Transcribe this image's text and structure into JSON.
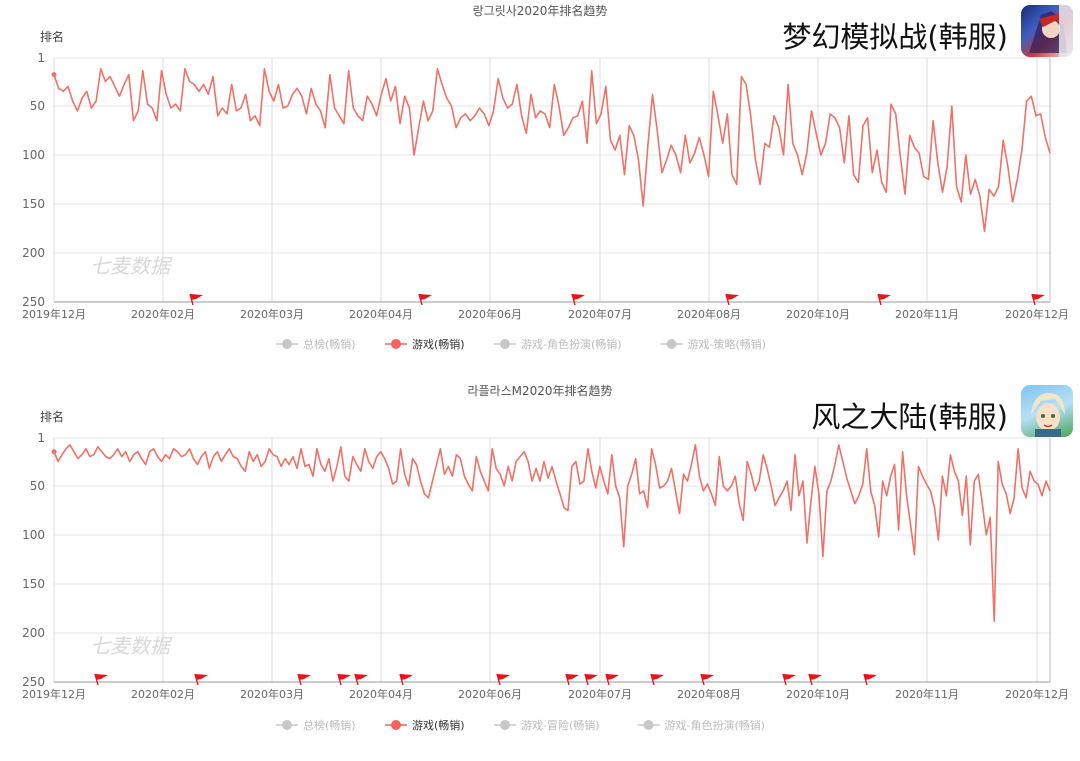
{
  "colors": {
    "line": "#f07167",
    "legend_active": "#f4645b",
    "legend_inactive": "#c8c8c8",
    "grid": "#e6e6e6",
    "axis_text": "#666666",
    "flag": "#e8141b"
  },
  "chart_data": [
    {
      "type": "line",
      "title": "랑그릿사2020年排名趋势",
      "app_label": "梦幻模拟战(韩服)",
      "app_icon": "app-icon-langrisser",
      "ylabel": "排名",
      "y_inverted": true,
      "ylim": [
        1,
        250
      ],
      "yticks": [
        "1",
        "50",
        "100",
        "150",
        "200",
        "250"
      ],
      "x_ticks": [
        "2019年12月",
        "2020年02月",
        "2020年03月",
        "2020年04月",
        "2020年06月",
        "2020年07月",
        "2020年08月",
        "2020年10月",
        "2020年11月",
        "2020年12月"
      ],
      "watermark": "七麦数据",
      "legend": [
        "总榜(畅销)",
        "游戏(畅销)",
        "游戏-角色扮演(畅销)",
        "游戏-策略(畅销)"
      ],
      "legend_active": 1,
      "series": [
        {
          "name": "游戏(畅销)",
          "values": [
            18,
            32,
            35,
            30,
            45,
            55,
            42,
            35,
            52,
            45,
            12,
            25,
            20,
            30,
            40,
            28,
            18,
            65,
            55,
            14,
            48,
            52,
            65,
            14,
            38,
            52,
            48,
            55,
            12,
            25,
            28,
            35,
            28,
            38,
            20,
            60,
            52,
            58,
            28,
            55,
            52,
            38,
            65,
            60,
            70,
            12,
            35,
            45,
            28,
            52,
            50,
            38,
            32,
            40,
            58,
            32,
            48,
            55,
            72,
            18,
            52,
            60,
            68,
            14,
            52,
            60,
            65,
            40,
            48,
            60,
            38,
            22,
            45,
            30,
            68,
            40,
            52,
            100,
            72,
            45,
            65,
            55,
            12,
            28,
            42,
            50,
            72,
            62,
            58,
            65,
            60,
            52,
            58,
            70,
            55,
            22,
            42,
            52,
            48,
            28,
            60,
            78,
            38,
            62,
            55,
            58,
            72,
            28,
            50,
            80,
            72,
            62,
            60,
            45,
            88,
            14,
            68,
            58,
            30,
            85,
            95,
            80,
            120,
            70,
            80,
            105,
            152,
            90,
            38,
            75,
            118,
            105,
            90,
            100,
            118,
            80,
            108,
            98,
            82,
            100,
            122,
            35,
            60,
            88,
            58,
            120,
            130,
            20,
            28,
            60,
            105,
            130,
            88,
            92,
            60,
            72,
            100,
            28,
            88,
            100,
            120,
            98,
            55,
            78,
            100,
            88,
            58,
            62,
            72,
            108,
            60,
            120,
            128,
            70,
            62,
            118,
            95,
            128,
            138,
            48,
            58,
            102,
            140,
            80,
            92,
            98,
            122,
            125,
            65,
            108,
            138,
            112,
            50,
            132,
            148,
            100,
            140,
            125,
            142,
            178,
            135,
            142,
            132,
            85,
            112,
            148,
            125,
            95,
            45,
            40,
            60,
            58,
            82,
            98
          ]
        }
      ],
      "flags": [
        "2020年02月",
        "2020年04月",
        "2020年07月",
        "2020年08月",
        "2020年10月",
        "2020年12月"
      ]
    },
    {
      "type": "line",
      "title": "라플라스M2020年排名趋势",
      "app_label": "风之大陆(韩服)",
      "app_icon": "app-icon-laplace",
      "ylabel": "排名",
      "y_inverted": true,
      "ylim": [
        1,
        250
      ],
      "yticks": [
        "1",
        "50",
        "100",
        "150",
        "200",
        "250"
      ],
      "x_ticks": [
        "2019年12月",
        "2020年02月",
        "2020年03月",
        "2020年04月",
        "2020年06月",
        "2020年07月",
        "2020年08月",
        "2020年10月",
        "2020年11月",
        "2020年12月"
      ],
      "watermark": "七麦数据",
      "legend": [
        "总榜(畅销)",
        "游戏(畅销)",
        "游戏-冒险(畅销)",
        "游戏-角色扮演(畅销)"
      ],
      "legend_active": 1,
      "series": [
        {
          "name": "游戏(畅销)",
          "values": [
            15,
            25,
            18,
            12,
            8,
            15,
            22,
            18,
            12,
            20,
            18,
            10,
            15,
            20,
            22,
            18,
            12,
            20,
            15,
            25,
            18,
            15,
            22,
            28,
            15,
            12,
            20,
            25,
            18,
            22,
            12,
            15,
            20,
            18,
            12,
            22,
            28,
            20,
            15,
            32,
            20,
            15,
            25,
            18,
            12,
            20,
            22,
            30,
            35,
            15,
            25,
            18,
            30,
            25,
            12,
            18,
            20,
            30,
            22,
            28,
            20,
            32,
            12,
            30,
            28,
            40,
            12,
            28,
            35,
            22,
            45,
            30,
            10,
            40,
            45,
            20,
            28,
            35,
            12,
            25,
            32,
            20,
            15,
            22,
            32,
            48,
            45,
            12,
            38,
            50,
            22,
            28,
            45,
            58,
            62,
            45,
            28,
            12,
            38,
            30,
            40,
            18,
            22,
            40,
            48,
            55,
            20,
            35,
            45,
            55,
            12,
            32,
            38,
            50,
            30,
            45,
            25,
            20,
            15,
            25,
            45,
            32,
            45,
            25,
            42,
            30,
            45,
            58,
            72,
            75,
            30,
            25,
            48,
            45,
            12,
            35,
            52,
            30,
            45,
            58,
            18,
            50,
            62,
            112,
            50,
            38,
            22,
            58,
            55,
            72,
            12,
            28,
            52,
            50,
            45,
            32,
            55,
            78,
            38,
            45,
            28,
            8,
            40,
            55,
            48,
            58,
            70,
            20,
            50,
            55,
            50,
            40,
            68,
            85,
            25,
            38,
            55,
            45,
            18,
            32,
            50,
            70,
            62,
            55,
            45,
            75,
            18,
            60,
            45,
            108,
            65,
            30,
            58,
            122,
            55,
            45,
            28,
            8,
            25,
            42,
            55,
            68,
            60,
            48,
            12,
            55,
            70,
            102,
            45,
            60,
            40,
            28,
            95,
            15,
            60,
            90,
            120,
            30,
            40,
            48,
            55,
            72,
            105,
            40,
            60,
            18,
            35,
            45,
            80,
            40,
            110,
            45,
            38,
            68,
            100,
            82,
            188,
            25,
            48,
            58,
            78,
            62,
            12,
            52,
            62,
            35,
            45,
            48,
            60,
            45,
            55
          ]
        }
      ],
      "flags": [
        "2019年12月",
        "2020年02月",
        "2020年03月",
        "2020年04月",
        "2020年06月",
        "2020年07月",
        "2020年08月",
        "2020年10月"
      ]
    }
  ]
}
